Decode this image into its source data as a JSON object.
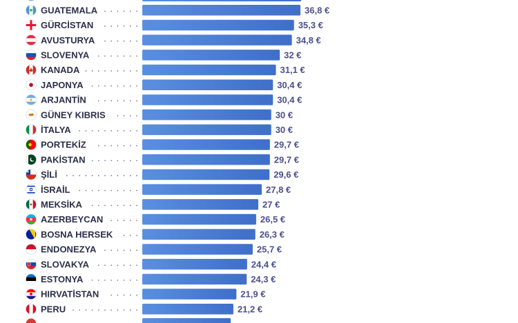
{
  "chart_data": {
    "type": "bar",
    "orientation": "horizontal",
    "xlim": [
      0,
      45
    ],
    "grid": false,
    "bar_color": "#4a7fd6",
    "categories": [
      "GUATEMALA",
      "GÜRCİSTAN",
      "AVUSTURYA",
      "SLOVENYA",
      "KANADA",
      "JAPONYA",
      "ARJANTİN",
      "GÜNEY KIBRIS",
      "İTALYA",
      "PORTEKİZ",
      "PAKİSTAN",
      "ŞİLİ",
      "İSRAİL",
      "MEKSİKA",
      "AZERBEYCAN",
      "BOSNA HERSEK",
      "ENDONEZYA",
      "SLOVAKYA",
      "ESTONYA",
      "HIRVATİSTAN",
      "PERU"
    ],
    "values": [
      36.8,
      35.3,
      34.8,
      32,
      31.1,
      30.4,
      30.4,
      30,
      30,
      29.7,
      29.7,
      29.6,
      27.8,
      27,
      26.5,
      26.3,
      25.7,
      24.4,
      24.3,
      21.9,
      21.2
    ],
    "value_labels": [
      "36,8 €",
      "35,3 €",
      "34,8 €",
      "32 €",
      "31,1 €",
      "30,4 €",
      "30,4 €",
      "30 €",
      "30 €",
      "29,7 €",
      "29,7 €",
      "29,6 €",
      "27,8 €",
      "27 €",
      "26,5 €",
      "26,3 €",
      "25,7 €",
      "24,4 €",
      "24,3 €",
      "21,9 €",
      "21,2 €"
    ],
    "flag_icons": [
      "guatemala-flag-icon",
      "georgia-flag-icon",
      "austria-flag-icon",
      "slovenia-flag-icon",
      "canada-flag-icon",
      "japan-flag-icon",
      "argentina-flag-icon",
      "cyprus-flag-icon",
      "italy-flag-icon",
      "portugal-flag-icon",
      "pakistan-flag-icon",
      "chile-flag-icon",
      "israel-flag-icon",
      "mexico-flag-icon",
      "azerbaijan-flag-icon",
      "bosnia-flag-icon",
      "indonesia-flag-icon",
      "slovakia-flag-icon",
      "estonia-flag-icon",
      "croatia-flag-icon",
      "peru-flag-icon"
    ]
  }
}
